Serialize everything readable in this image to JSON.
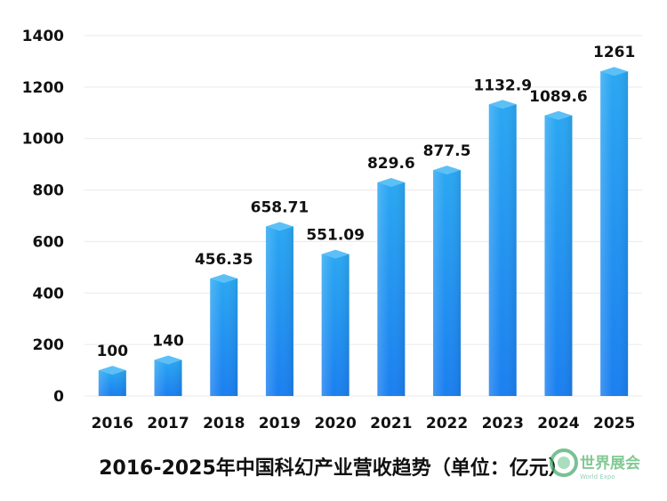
{
  "chart_data": {
    "type": "bar",
    "title": "2016-2025年中国科幻产业营收趋势（单位：亿元）",
    "categories": [
      "2016",
      "2017",
      "2018",
      "2019",
      "2020",
      "2021",
      "2022",
      "2023",
      "2024",
      "2025"
    ],
    "values": [
      100,
      140,
      456.35,
      658.71,
      551.09,
      829.6,
      877.5,
      1132.9,
      1089.6,
      1261
    ],
    "value_labels": [
      "100",
      "140",
      "456.35",
      "658.71",
      "551.09",
      "829.6",
      "877.5",
      "1132.9",
      "1089.6",
      "1261"
    ],
    "ylim": [
      0,
      1400
    ],
    "yticks": [
      0,
      200,
      400,
      600,
      800,
      1000,
      1200,
      1400
    ],
    "grid": true,
    "bar_color_top": "#2aa7f2",
    "bar_color_bottom": "#1a7ff0",
    "bar_cap_color": "#5cc0f7"
  },
  "watermark": {
    "text": "世界展会"
  }
}
